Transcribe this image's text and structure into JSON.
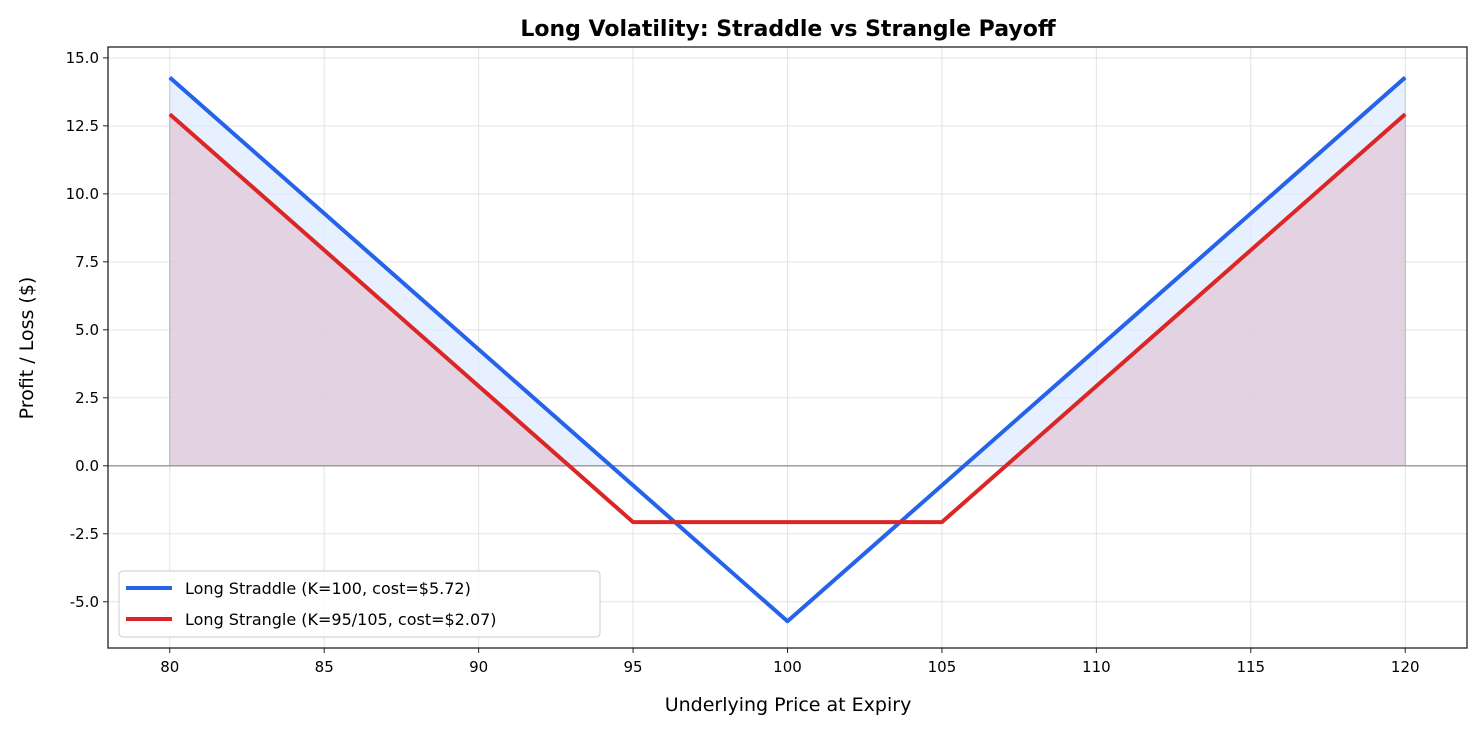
{
  "chart_data": {
    "type": "line",
    "title": "Long Volatility: Straddle vs Strangle Payoff",
    "xlabel": "Underlying Price at Expiry",
    "ylabel": "Profit / Loss ($)",
    "xlim": [
      78,
      122
    ],
    "ylim": [
      -6.7,
      15.4
    ],
    "xticks": [
      80,
      85,
      90,
      95,
      100,
      105,
      110,
      115,
      120
    ],
    "yticks": [
      -5.0,
      -2.5,
      0.0,
      2.5,
      5.0,
      7.5,
      10.0,
      12.5,
      15.0
    ],
    "ytick_labels": [
      "-5.0",
      "-2.5",
      "0.0",
      "2.5",
      "5.0",
      "7.5",
      "10.0",
      "12.5",
      "15.0"
    ],
    "grid": true,
    "legend_position": "lower-left",
    "zero_line": true,
    "series": [
      {
        "name": "Long Straddle (K=100, cost=$5.72)",
        "color": "#2563eb",
        "fill_color": "#dbeafe",
        "x": [
          80,
          100,
          120
        ],
        "y": [
          14.28,
          -5.72,
          14.28
        ]
      },
      {
        "name": "Long Strangle (K=95/105, cost=$2.07)",
        "color": "#dc2626",
        "fill_color": "#e0c8d8",
        "x": [
          80,
          95,
          105,
          120
        ],
        "y": [
          12.93,
          -2.07,
          -2.07,
          12.93
        ]
      }
    ]
  }
}
